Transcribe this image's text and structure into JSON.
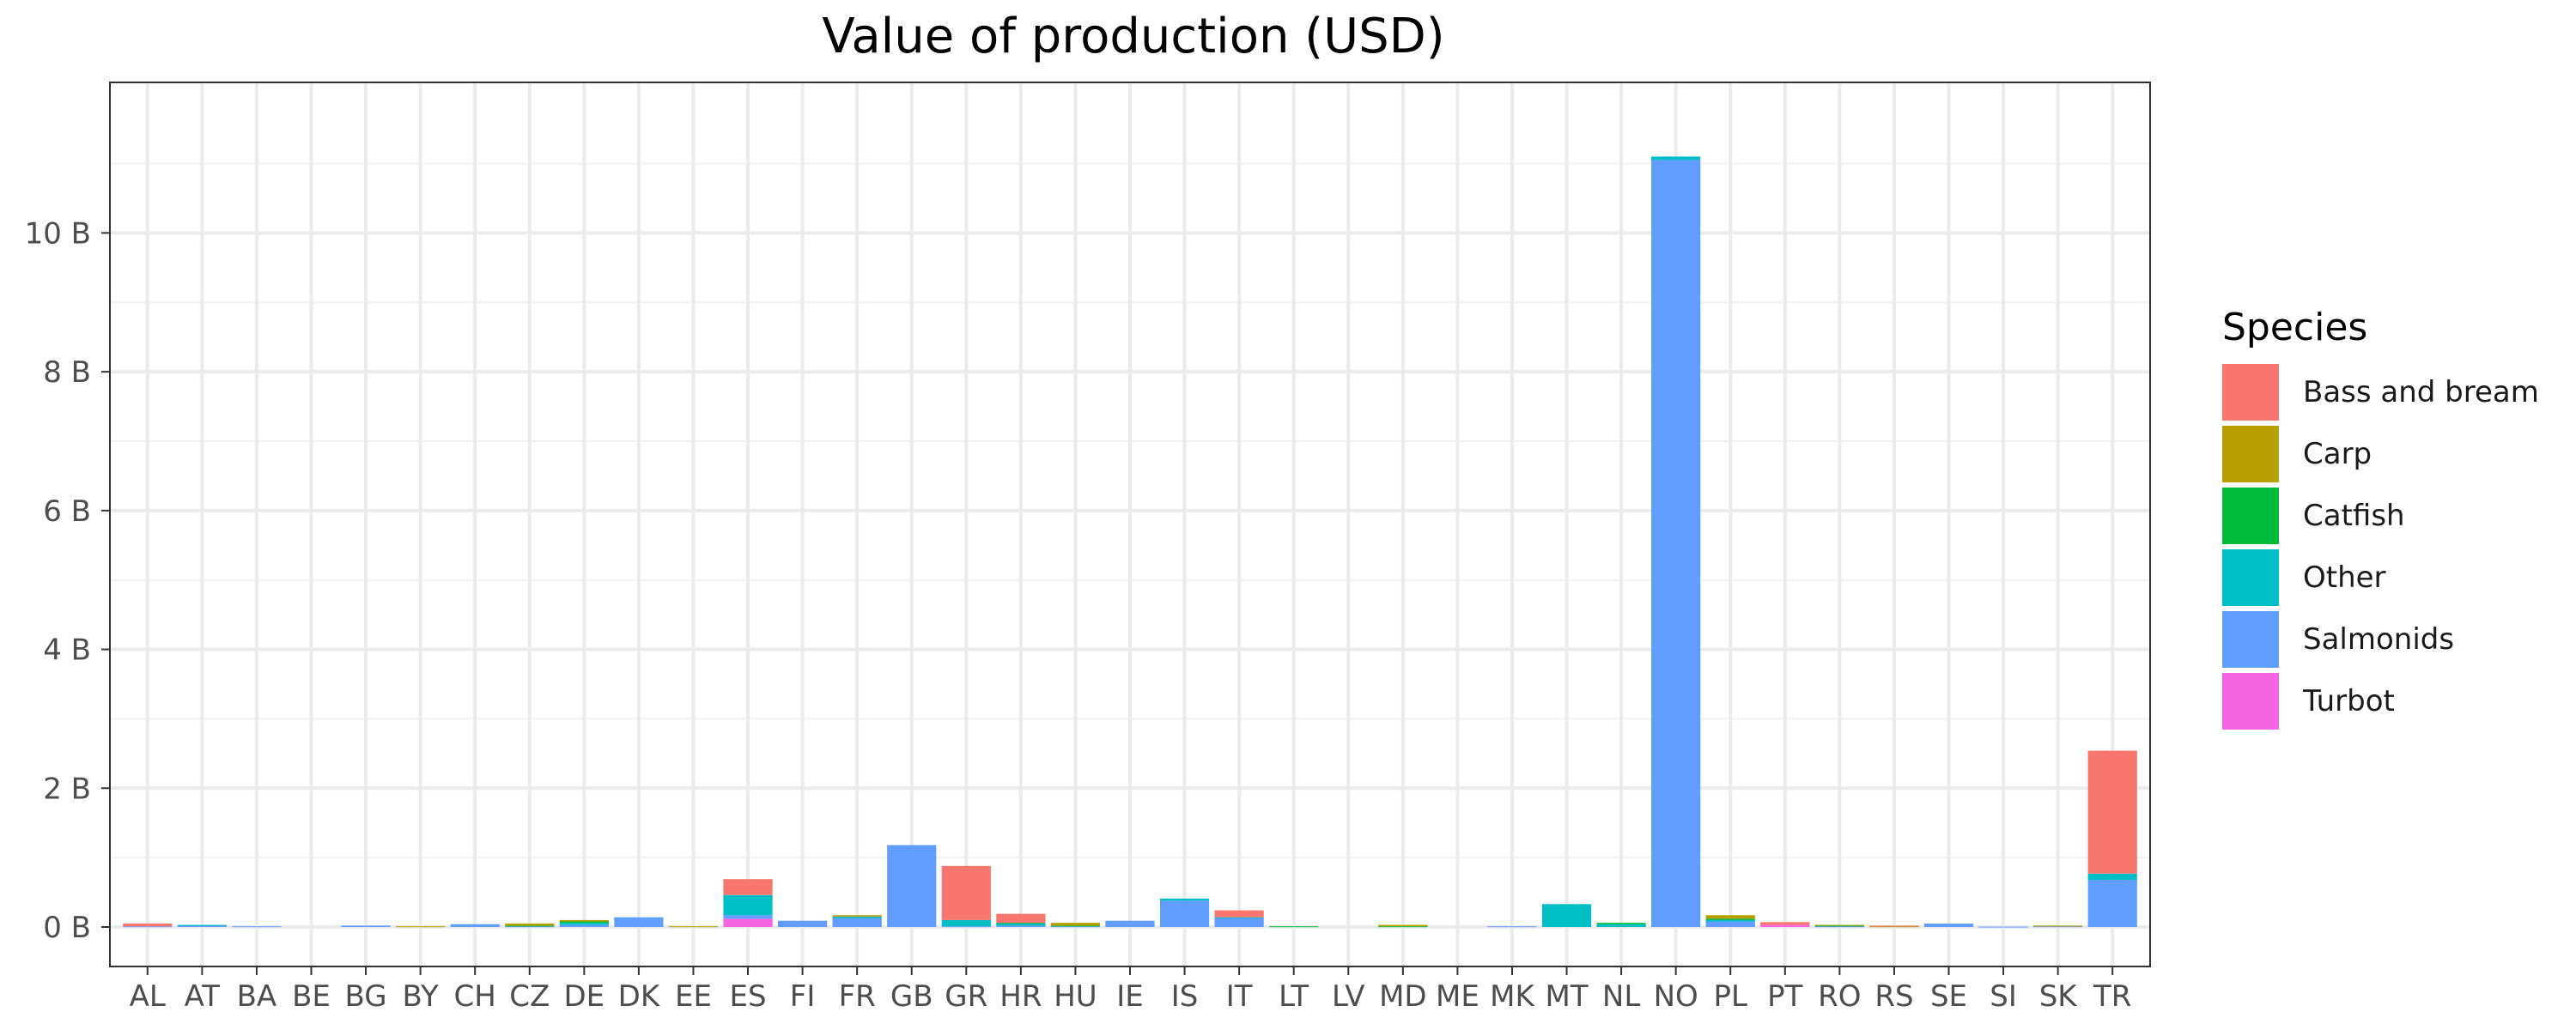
{
  "chart_data": {
    "type": "bar",
    "stacked": true,
    "title": "Value of production (USD)",
    "xlabel": "",
    "ylabel": "",
    "ylim": [
      0,
      11.6
    ],
    "y_ticks": [
      {
        "value": 0,
        "label": "0 B"
      },
      {
        "value": 2,
        "label": "2 B"
      },
      {
        "value": 4,
        "label": "4 B"
      },
      {
        "value": 6,
        "label": "6 B"
      },
      {
        "value": 8,
        "label": "8 B"
      },
      {
        "value": 10,
        "label": "10 B"
      }
    ],
    "grid": true,
    "legend_title": "Species",
    "legend_position": "right",
    "categories": [
      "AL",
      "AT",
      "BA",
      "BE",
      "BG",
      "BY",
      "CH",
      "CZ",
      "DE",
      "DK",
      "EE",
      "ES",
      "FI",
      "FR",
      "GB",
      "GR",
      "HR",
      "HU",
      "IE",
      "IS",
      "IT",
      "LT",
      "LV",
      "MD",
      "ME",
      "MK",
      "MT",
      "NL",
      "NO",
      "PL",
      "PT",
      "RO",
      "RS",
      "SE",
      "SI",
      "SK",
      "TR"
    ],
    "series": [
      {
        "name": "Turbot",
        "color": "#F564E3",
        "values": [
          0,
          0,
          0,
          0,
          0,
          0,
          0,
          0,
          0,
          0,
          0,
          0.12,
          0,
          0,
          0,
          0,
          0,
          0,
          0,
          0,
          0,
          0,
          0,
          0,
          0,
          0,
          0,
          0,
          0,
          0,
          0.03,
          0,
          0,
          0,
          0,
          0,
          0
        ]
      },
      {
        "name": "Salmonids",
        "color": "#619CFF",
        "values": [
          0.01,
          0.02,
          0.01,
          0,
          0.02,
          0,
          0.04,
          0.01,
          0.03,
          0.14,
          0,
          0.05,
          0.09,
          0.13,
          1.18,
          0.01,
          0.02,
          0.01,
          0.09,
          0.38,
          0.13,
          0,
          0,
          0,
          0,
          0.01,
          0,
          0,
          11.05,
          0.08,
          0,
          0.01,
          0,
          0.05,
          0.005,
          0.01,
          0.68
        ]
      },
      {
        "name": "Other",
        "color": "#00BFC4",
        "values": [
          0,
          0.01,
          0,
          0,
          0,
          0,
          0,
          0,
          0.03,
          0,
          0,
          0.29,
          0,
          0.02,
          0,
          0.09,
          0.03,
          0,
          0,
          0.03,
          0.01,
          0,
          0,
          0,
          0,
          0,
          0.33,
          0.04,
          0.05,
          0.02,
          0,
          0,
          0,
          0,
          0,
          0,
          0.09
        ]
      },
      {
        "name": "Catfish",
        "color": "#00BA38",
        "values": [
          0,
          0,
          0,
          0,
          0,
          0,
          0,
          0.01,
          0.02,
          0,
          0,
          0,
          0,
          0,
          0,
          0,
          0.01,
          0.01,
          0,
          0,
          0,
          0.01,
          0,
          0.01,
          0,
          0,
          0,
          0.02,
          0,
          0.02,
          0,
          0.01,
          0,
          0,
          0,
          0,
          0
        ]
      },
      {
        "name": "Carp",
        "color": "#B79F00",
        "values": [
          0,
          0,
          0,
          0,
          0,
          0.01,
          0,
          0.03,
          0.02,
          0,
          0.01,
          0,
          0,
          0.02,
          0,
          0,
          0,
          0.04,
          0,
          0,
          0,
          0,
          0,
          0.02,
          0,
          0,
          0,
          0,
          0,
          0.05,
          0,
          0.01,
          0.01,
          0,
          0,
          0.01,
          0
        ]
      },
      {
        "name": "Bass and bream",
        "color": "#F8766D",
        "values": [
          0.04,
          0,
          0,
          0,
          0,
          0,
          0,
          0,
          0,
          0,
          0,
          0.23,
          0,
          0,
          0,
          0.78,
          0.13,
          0,
          0,
          0,
          0.1,
          0,
          0,
          0,
          0,
          0,
          0,
          0,
          0,
          0,
          0.04,
          0,
          0.01,
          0,
          0,
          0,
          1.77
        ]
      }
    ]
  },
  "legend_order": [
    "Bass and bream",
    "Carp",
    "Catfish",
    "Other",
    "Salmonids",
    "Turbot"
  ]
}
